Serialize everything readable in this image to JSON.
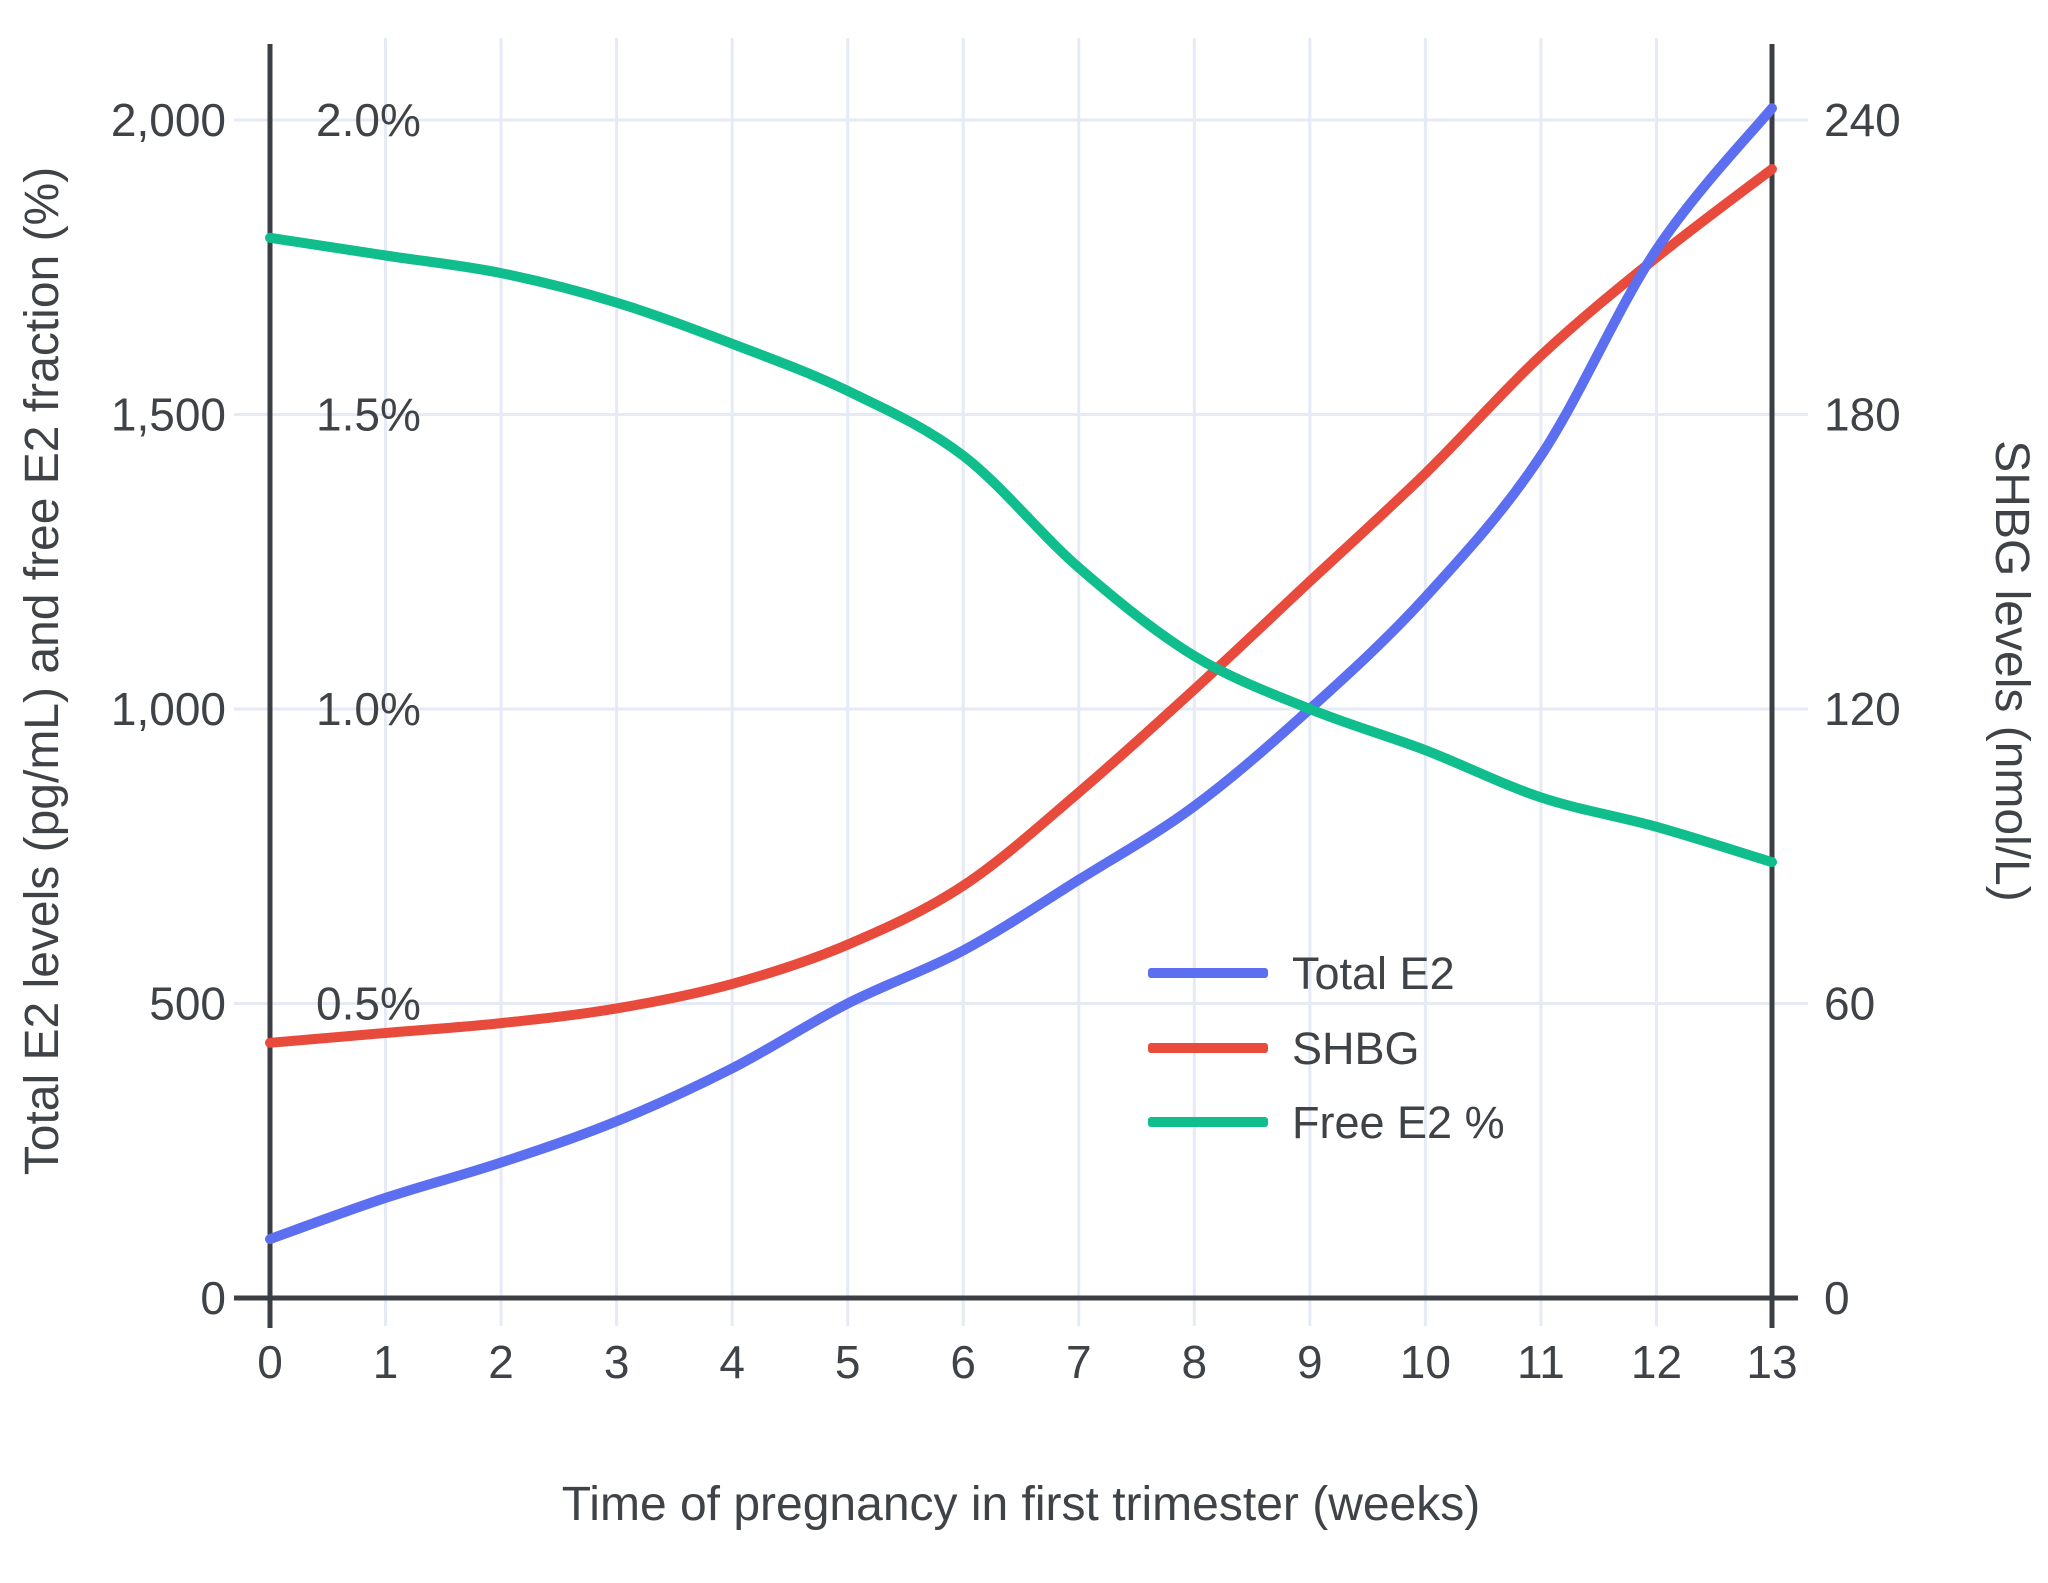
{
  "page": {
    "background": "#ffffff"
  },
  "chart_data": {
    "type": "line",
    "title": "",
    "xlabel": "Time of pregnancy in first trimester (weeks)",
    "ylabel_left": "Total E2 levels (pg/mL) and free E2 fraction (%)",
    "ylabel_right": "SHBG levels (nmol/L)",
    "x": [
      0,
      1,
      2,
      3,
      4,
      5,
      6,
      7,
      8,
      9,
      10,
      11,
      12,
      13
    ],
    "x_tick_labels": [
      "0",
      "1",
      "2",
      "3",
      "4",
      "5",
      "6",
      "7",
      "8",
      "9",
      "10",
      "11",
      "12",
      "13"
    ],
    "series": [
      {
        "name": "Total E2",
        "axis": "left",
        "color": "#5B6FF0",
        "values": [
          100,
          170,
          230,
          300,
          390,
          500,
          590,
          710,
          835,
          1000,
          1190,
          1430,
          1780,
          2020
        ]
      },
      {
        "name": "SHBG",
        "axis": "right",
        "color": "#E84A3C",
        "values": [
          52,
          54,
          56,
          59,
          64,
          72,
          84,
          103,
          124,
          146,
          168,
          192,
          212,
          230
        ]
      },
      {
        "name": "Free E2 %",
        "axis": "percent",
        "color": "#0FBE8C",
        "values": [
          1.8,
          1.77,
          1.74,
          1.69,
          1.62,
          1.54,
          1.43,
          1.24,
          1.09,
          1.0,
          0.93,
          0.85,
          0.8,
          0.74
        ]
      }
    ],
    "axes": {
      "left": {
        "range": [
          0,
          2000
        ],
        "ticks": [
          0,
          500,
          1000,
          1500,
          2000
        ],
        "tick_labels": [
          "0",
          "500",
          "1,000",
          "1,500",
          "2,000"
        ]
      },
      "percent": {
        "range": [
          0,
          2.0
        ],
        "ticks": [
          0.5,
          1.0,
          1.5,
          2.0
        ],
        "tick_labels": [
          "0.5%",
          "1.0%",
          "1.5%",
          "2.0%"
        ]
      },
      "right": {
        "range": [
          0,
          240
        ],
        "ticks": [
          0,
          60,
          120,
          180,
          240
        ],
        "tick_labels": [
          "0",
          "60",
          "120",
          "180",
          "240"
        ]
      }
    },
    "legend": {
      "position": "inside-right",
      "entries": [
        "Total E2",
        "SHBG",
        "Free E2 %"
      ]
    },
    "grid": true,
    "colors": {
      "grid": "#E5EAF4",
      "axis": "#3B3F44",
      "text": "#3F4347"
    },
    "draw_order": [
      "SHBG",
      "Total E2",
      "Free E2 %"
    ]
  }
}
